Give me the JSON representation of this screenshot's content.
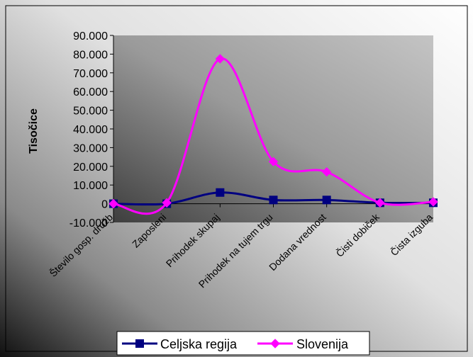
{
  "chart_data": {
    "type": "line",
    "title": "",
    "xlabel": "",
    "ylabel": "Tisočice",
    "ylim": [
      -10000,
      90000
    ],
    "yticks": [
      -10000,
      0,
      10000,
      20000,
      30000,
      40000,
      50000,
      60000,
      70000,
      80000,
      90000
    ],
    "ytick_labels": [
      "-10.000",
      "0",
      "10.000",
      "20.000",
      "30.000",
      "40.000",
      "50.000",
      "60.000",
      "70.000",
      "80.000",
      "90.000"
    ],
    "categories": [
      "Število gosp. družb",
      "Zaposleni",
      "Prihodek skupaj",
      "Prihodek na tujem trgu",
      "Dodana vrednost",
      "Čisti dobiček",
      "Čista izguba"
    ],
    "series": [
      {
        "name": "Celjska regija",
        "values": [
          0,
          0,
          6000,
          2000,
          2000,
          500,
          500
        ],
        "color": "#000080",
        "marker": "square"
      },
      {
        "name": "Slovenija",
        "values": [
          0,
          500,
          77500,
          22500,
          17000,
          500,
          1000
        ],
        "color": "#ff00ff",
        "marker": "diamond"
      }
    ],
    "grid": false,
    "legend_position": "bottom",
    "smooth": true
  },
  "colors": {
    "plot_gradient_light": "#b4b4b4",
    "plot_gradient_dark": "#4a4a4a",
    "background_gradient_light": "#ffffff",
    "background_gradient_dark": "#000000"
  }
}
